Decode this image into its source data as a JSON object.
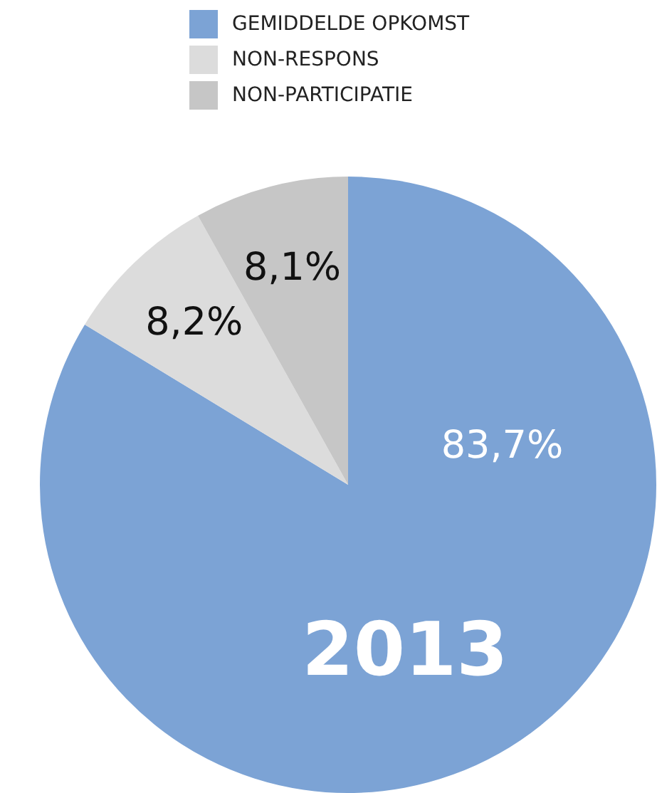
{
  "chart_data": {
    "type": "pie",
    "categories": [
      "GEMIDDELDE OPKOMST",
      "NON-RESPONS",
      "NON-PARTICIPATIE"
    ],
    "values": [
      83.7,
      8.2,
      8.1
    ],
    "colors": [
      "#7ca3d5",
      "#dcdcdc",
      "#c6c6c6"
    ],
    "value_labels": [
      "83,7%",
      "8,2%",
      "8,1%"
    ],
    "legend": "top",
    "annotations": [
      "2013"
    ]
  }
}
